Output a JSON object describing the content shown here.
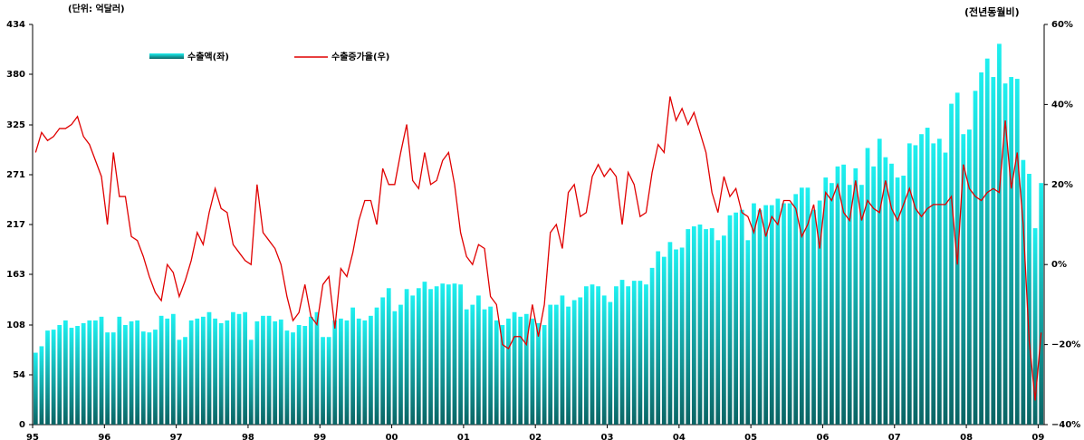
{
  "chart_data": {
    "type": "bar_line",
    "unit_label": "(단위: 억달러)",
    "y2_label": "(전년동월비)",
    "categories": [
      "95",
      null,
      null,
      null,
      null,
      null,
      null,
      null,
      null,
      null,
      null,
      null,
      "96",
      null,
      null,
      null,
      null,
      null,
      null,
      null,
      null,
      null,
      null,
      null,
      "97",
      null,
      null,
      null,
      null,
      null,
      null,
      null,
      null,
      null,
      null,
      null,
      "98",
      null,
      null,
      null,
      null,
      null,
      null,
      null,
      null,
      null,
      null,
      null,
      "99",
      null,
      null,
      null,
      null,
      null,
      null,
      null,
      null,
      null,
      null,
      null,
      "00",
      null,
      null,
      null,
      null,
      null,
      null,
      null,
      null,
      null,
      null,
      null,
      "01",
      null,
      null,
      null,
      null,
      null,
      null,
      null,
      null,
      null,
      null,
      null,
      "02",
      null,
      null,
      null,
      null,
      null,
      null,
      null,
      null,
      null,
      null,
      null,
      "03",
      null,
      null,
      null,
      null,
      null,
      null,
      null,
      null,
      null,
      null,
      null,
      "04",
      null,
      null,
      null,
      null,
      null,
      null,
      null,
      null,
      null,
      null,
      null,
      "05",
      null,
      null,
      null,
      null,
      null,
      null,
      null,
      null,
      null,
      null,
      null,
      "06",
      null,
      null,
      null,
      null,
      null,
      null,
      null,
      null,
      null,
      null,
      null,
      "07",
      null,
      null,
      null,
      null,
      null,
      null,
      null,
      null,
      null,
      null,
      null,
      "08",
      null,
      null,
      null,
      null,
      null,
      null,
      null,
      null,
      null,
      null,
      null,
      "09"
    ],
    "series": [
      {
        "name": "수출액(좌)",
        "color": "#1ef0f0",
        "values": [
          78,
          85,
          102,
          103,
          108,
          113,
          105,
          107,
          110,
          113,
          113,
          117,
          100,
          100,
          117,
          108,
          112,
          113,
          101,
          100,
          103,
          118,
          115,
          120,
          92,
          95,
          113,
          115,
          117,
          122,
          115,
          110,
          113,
          122,
          120,
          122,
          92,
          112,
          118,
          118,
          112,
          114,
          102,
          100,
          108,
          107,
          117,
          122,
          95,
          95,
          113,
          115,
          113,
          127,
          115,
          113,
          118,
          127,
          138,
          148,
          123,
          130,
          147,
          140,
          148,
          155,
          147,
          150,
          153,
          152,
          153,
          152,
          125,
          130,
          140,
          125,
          128,
          113,
          108,
          115,
          122,
          117,
          120,
          115,
          110,
          108,
          130,
          130,
          140,
          128,
          135,
          138,
          150,
          152,
          150,
          140,
          133,
          150,
          157,
          150,
          156,
          156,
          152,
          170,
          188,
          182,
          198,
          190,
          192,
          212,
          215,
          217,
          212,
          213,
          200,
          205,
          227,
          230,
          233,
          200,
          240,
          233,
          238,
          238,
          245,
          240,
          240,
          250,
          257,
          257,
          233,
          243,
          268,
          262,
          280,
          282,
          260,
          278,
          260,
          300,
          280,
          310,
          290,
          283,
          268,
          270,
          305,
          303,
          315,
          322,
          305,
          310,
          295,
          348,
          360,
          315,
          320,
          362,
          382,
          397,
          377,
          413,
          370,
          377,
          375,
          287,
          272,
          213,
          262
        ]
      },
      {
        "name": "수출증가율(우)",
        "color": "#e00000",
        "axis": "y2",
        "values": [
          28,
          33,
          31,
          32,
          34,
          34,
          35,
          37,
          32,
          30,
          26,
          22,
          10,
          28,
          17,
          17,
          7,
          6,
          2,
          -3,
          -7,
          -9,
          0,
          -2,
          -8,
          -4,
          1,
          8,
          5,
          13,
          19,
          14,
          13,
          5,
          3,
          1,
          0,
          20,
          8,
          6,
          4,
          0,
          -8,
          -14,
          -12,
          -5,
          -13,
          -15,
          -5,
          -3,
          -16,
          -1,
          -3,
          3,
          11,
          16,
          16,
          10,
          24,
          20,
          20,
          28,
          35,
          21,
          19,
          28,
          20,
          21,
          26,
          28,
          20,
          8,
          2,
          0,
          5,
          4,
          -8,
          -10,
          -20,
          -21,
          -18,
          -18,
          -20,
          -10,
          -18,
          -10,
          8,
          10,
          4,
          18,
          20,
          12,
          13,
          22,
          25,
          22,
          24,
          22,
          10,
          23,
          20,
          12,
          13,
          23,
          30,
          28,
          42,
          36,
          39,
          35,
          38,
          33,
          28,
          18,
          13,
          22,
          17,
          19,
          13,
          12,
          8,
          14,
          7,
          12,
          10,
          16,
          16,
          14,
          7,
          10,
          15,
          4,
          18,
          16,
          20,
          13,
          11,
          21,
          11,
          16,
          14,
          13,
          21,
          14,
          11,
          15,
          19,
          14,
          12,
          14,
          15,
          15,
          15,
          17,
          0,
          25,
          19,
          17,
          16,
          18,
          19,
          18,
          36,
          19,
          28,
          10,
          -19,
          -34,
          -17
        ]
      }
    ],
    "ylim": [
      0,
      434
    ],
    "yticks": [
      0,
      54,
      108,
      163,
      217,
      271,
      325,
      380,
      434
    ],
    "y2lim": [
      -40,
      60
    ],
    "y2ticks": [
      {
        "value": -40,
        "label": "−40%"
      },
      {
        "value": -20,
        "label": "−20%"
      },
      {
        "value": 0,
        "label": "0%"
      },
      {
        "value": 20,
        "label": "20%"
      },
      {
        "value": 40,
        "label": "40%"
      },
      {
        "value": 60,
        "label": "60%"
      }
    ]
  }
}
